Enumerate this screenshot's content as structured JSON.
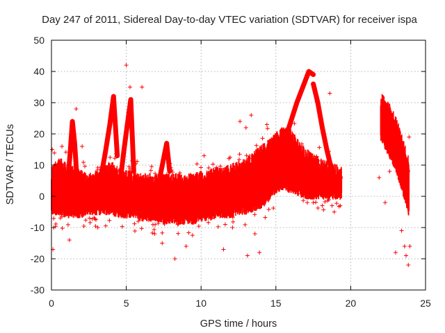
{
  "chart_data": {
    "type": "scatter",
    "title": "Day 247 of 2011, Sidereal Day-to-day VTEC variation (SDTVAR) for receiver ispa",
    "xlabel": "GPS time / hours",
    "ylabel": "SDTVAR / TECUs",
    "xlim": [
      0,
      25
    ],
    "ylim": [
      -30,
      50
    ],
    "x_ticks": [
      0,
      5,
      10,
      15,
      20,
      25
    ],
    "y_ticks": [
      -30,
      -20,
      -10,
      0,
      10,
      20,
      30,
      40,
      50
    ],
    "grid": true,
    "marker": "+",
    "series_color": "#ff0000",
    "series": [
      {
        "name": "SDTVAR",
        "dense_band": {
          "x": [
            0.0,
            0.5,
            1.0,
            1.5,
            2.0,
            2.5,
            3.0,
            3.5,
            4.0,
            4.5,
            5.0,
            5.5,
            6.0,
            6.5,
            7.0,
            7.5,
            8.0,
            8.5,
            9.0,
            9.5,
            10.0,
            10.5,
            11.0,
            11.5,
            12.0,
            12.5,
            13.0,
            13.5,
            14.0,
            14.5,
            15.0,
            15.5,
            16.0,
            16.5,
            17.0,
            17.5,
            18.0,
            18.5,
            19.0,
            19.4
          ],
          "low": [
            -4,
            -4,
            -5,
            -5,
            -5,
            -4,
            -4,
            -4,
            -4,
            -5,
            -5,
            -5,
            -6,
            -6,
            -6,
            -7,
            -7,
            -7,
            -7,
            -7,
            -6,
            -6,
            -5,
            -5,
            -5,
            -4,
            -4,
            -3,
            -2,
            0,
            3,
            4,
            3,
            2,
            1,
            1,
            1,
            1,
            1,
            1
          ],
          "high": [
            8,
            10,
            9,
            7,
            6,
            5,
            6,
            8,
            9,
            7,
            6,
            6,
            5,
            5,
            5,
            5,
            5,
            5,
            5,
            5,
            6,
            6,
            7,
            7,
            8,
            9,
            10,
            12,
            14,
            16,
            18,
            20,
            19,
            16,
            13,
            11,
            10,
            9,
            8,
            7
          ]
        },
        "late_band": {
          "x": [
            22.0,
            22.5,
            23.0,
            23.5,
            23.9
          ],
          "low": [
            20,
            15,
            10,
            2,
            -5
          ],
          "high": [
            31,
            28,
            24,
            16,
            10
          ]
        },
        "traces": [
          {
            "name": "rise-1.4h",
            "x": [
              1.1,
              1.25,
              1.4,
              1.55,
              1.7
            ],
            "y": [
              5,
              14,
              24,
              17,
              6
            ]
          },
          {
            "name": "rise-4.2h",
            "x": [
              3.3,
              3.6,
              3.9,
              4.15,
              4.4
            ],
            "y": [
              6,
              14,
              23,
              32,
              13
            ]
          },
          {
            "name": "rise-5.1h",
            "x": [
              4.6,
              4.85,
              5.1,
              5.3,
              5.5
            ],
            "y": [
              5,
              15,
              24,
              31,
              8
            ]
          },
          {
            "name": "rise-7.6h",
            "x": [
              7.2,
              7.45,
              7.7,
              7.9
            ],
            "y": [
              5,
              11,
              17,
              8
            ]
          },
          {
            "name": "rise-17.2h",
            "x": [
              15.6,
              16.0,
              16.4,
              16.8,
              17.2,
              17.5
            ],
            "y": [
              18,
              24,
              30,
              35,
              40,
              39
            ]
          },
          {
            "name": "fall-18.5h",
            "x": [
              17.5,
              17.8,
              18.1,
              18.4,
              18.7,
              19.0
            ],
            "y": [
              36,
              30,
              22,
              15,
              9,
              5
            ]
          },
          {
            "name": "decay-19h",
            "x": [
              15.0,
              15.6,
              16.3,
              17.0,
              17.8,
              18.5,
              19.3
            ],
            "y": [
              18,
              15,
              12,
              9,
              7,
              6,
              6
            ]
          },
          {
            "name": "decline-23h",
            "x": [
              22.2,
              22.6,
              23.0,
              23.4,
              23.8
            ],
            "y": [
              30,
              26,
              22,
              16,
              8
            ]
          }
        ],
        "outliers": [
          {
            "x": 0.1,
            "y": -17
          },
          {
            "x": 0.15,
            "y": -10
          },
          {
            "x": 0.05,
            "y": 15
          },
          {
            "x": 0.7,
            "y": 16
          },
          {
            "x": 1.2,
            "y": -14
          },
          {
            "x": 1.65,
            "y": 28
          },
          {
            "x": 2.05,
            "y": 16
          },
          {
            "x": 2.55,
            "y": -7
          },
          {
            "x": 3.1,
            "y": -10
          },
          {
            "x": 5.0,
            "y": 42
          },
          {
            "x": 5.25,
            "y": 35
          },
          {
            "x": 6.05,
            "y": 35
          },
          {
            "x": 5.8,
            "y": -8
          },
          {
            "x": 6.9,
            "y": -12
          },
          {
            "x": 7.4,
            "y": -15
          },
          {
            "x": 8.25,
            "y": -20
          },
          {
            "x": 9.0,
            "y": -16
          },
          {
            "x": 10.2,
            "y": 13
          },
          {
            "x": 11.5,
            "y": -17
          },
          {
            "x": 12.1,
            "y": -10
          },
          {
            "x": 12.6,
            "y": 24
          },
          {
            "x": 13.0,
            "y": 22
          },
          {
            "x": 13.35,
            "y": 26
          },
          {
            "x": 13.6,
            "y": -12
          },
          {
            "x": 13.1,
            "y": -19
          },
          {
            "x": 13.9,
            "y": -18
          },
          {
            "x": 14.4,
            "y": 23
          },
          {
            "x": 14.9,
            "y": 12
          },
          {
            "x": 17.1,
            "y": -2
          },
          {
            "x": 17.5,
            "y": -2
          },
          {
            "x": 18.1,
            "y": -3
          },
          {
            "x": 18.6,
            "y": 33
          },
          {
            "x": 18.9,
            "y": -5
          },
          {
            "x": 19.3,
            "y": -3
          },
          {
            "x": 21.9,
            "y": 6
          },
          {
            "x": 22.3,
            "y": -2
          },
          {
            "x": 22.6,
            "y": 8
          },
          {
            "x": 23.0,
            "y": -18
          },
          {
            "x": 23.4,
            "y": -11
          },
          {
            "x": 23.6,
            "y": -16
          },
          {
            "x": 23.7,
            "y": -19
          },
          {
            "x": 23.85,
            "y": -22
          },
          {
            "x": 23.9,
            "y": 19
          },
          {
            "x": 23.95,
            "y": -16
          }
        ]
      }
    ]
  }
}
